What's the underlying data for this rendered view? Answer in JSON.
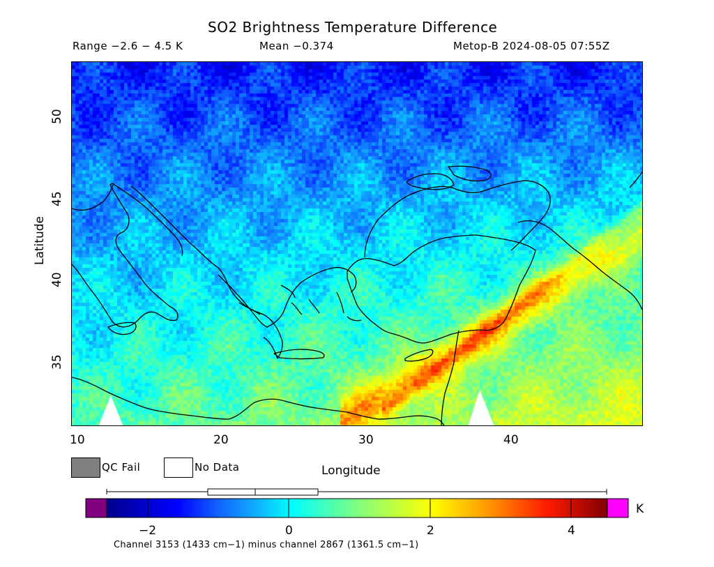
{
  "title": "SO2 Brightness Temperature Difference",
  "header": {
    "range": "Range −2.6 − 4.5 K",
    "mean": "Mean −0.374",
    "satellite": "Metop-B 2024-08-05 07:55Z"
  },
  "map": {
    "ylabel": "Latitude",
    "xlabel": "Longitude",
    "lat_ticks": [
      "50",
      "45",
      "40",
      "35"
    ],
    "lon_ticks": [
      "10",
      "20",
      "30",
      "40"
    ],
    "lon_range": [
      9.8,
      48.8
    ],
    "lat_range": [
      31,
      53.1
    ]
  },
  "legend": {
    "qc_fail": "QC Fail",
    "no_data": "No Data",
    "qc_fail_color": "#808080",
    "no_data_color": "#ffffff"
  },
  "colorbar": {
    "unit": "K",
    "ticks": [
      "−2",
      "0",
      "2",
      "4"
    ],
    "range": [
      -2.6,
      4.5
    ],
    "underflow_color": "#800080",
    "overflow_color": "#ff00ff",
    "boxplot": {
      "min": -2.6,
      "q1": -1.15,
      "median": -0.48,
      "q3": 0.42,
      "max": 4.5
    }
  },
  "footer": "Channel 3153 (1433 cm−1) minus channel 2867 (1361.5 cm−1)"
}
